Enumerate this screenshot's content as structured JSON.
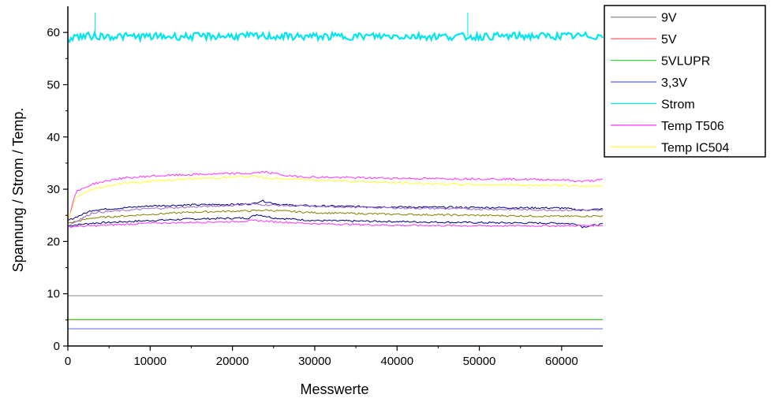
{
  "chart_data": {
    "type": "line",
    "title": "",
    "xlabel": "Messwerte",
    "ylabel": "Spannung / Strom / Temp.",
    "xlim": [
      0,
      65000
    ],
    "ylim": [
      0,
      65
    ],
    "xticks": [
      0,
      10000,
      20000,
      30000,
      40000,
      50000,
      60000
    ],
    "yticks": [
      0,
      10,
      20,
      30,
      40,
      50,
      60
    ],
    "grid": false,
    "legend_position": "top-right",
    "series": [
      {
        "name": "9V",
        "color": "#888888",
        "x": [
          0,
          65000
        ],
        "y": [
          9.6,
          9.6
        ]
      },
      {
        "name": "5V",
        "color": "#ff6060",
        "x": [
          0,
          65000
        ],
        "y": [
          5.0,
          5.0
        ]
      },
      {
        "name": "5VLUPR",
        "color": "#33dd33",
        "x": [
          0,
          65000
        ],
        "y": [
          5.1,
          5.1
        ]
      },
      {
        "name": "3,3V",
        "color": "#6060ff",
        "x": [
          0,
          65000
        ],
        "y": [
          3.3,
          3.3
        ]
      },
      {
        "name": "Strom",
        "color": "#00e5ee",
        "x": [
          0,
          500,
          3000,
          10000,
          20000,
          30000,
          40000,
          48500,
          55000,
          65000
        ],
        "y": [
          58.5,
          59.2,
          59.3,
          59.2,
          59.3,
          59.2,
          59.3,
          59.2,
          59.3,
          59.3
        ]
      },
      {
        "name": "Temp T506",
        "color": "#ff33ff",
        "x": [
          0,
          1000,
          3000,
          6000,
          10000,
          15000,
          20000,
          22000,
          24000,
          27000,
          30000,
          35000,
          40000,
          45000,
          50000,
          55000,
          60000,
          62500,
          65000
        ],
        "y": [
          24.0,
          29.5,
          31.0,
          32.0,
          32.5,
          32.8,
          33.0,
          33.0,
          33.3,
          32.5,
          32.3,
          32.2,
          32.1,
          32.0,
          32.0,
          31.9,
          31.8,
          31.5,
          31.8
        ]
      },
      {
        "name": "Temp IC504",
        "color": "#ffff33",
        "x": [
          0,
          1000,
          3000,
          6000,
          10000,
          15000,
          20000,
          23000,
          25000,
          30000,
          35000,
          40000,
          45000,
          50000,
          55000,
          60000,
          62500,
          65000
        ],
        "y": [
          24.0,
          28.5,
          30.0,
          31.0,
          31.5,
          32.0,
          32.3,
          32.5,
          32.0,
          31.8,
          31.5,
          31.2,
          31.0,
          30.9,
          30.8,
          30.8,
          30.5,
          30.7
        ]
      }
    ],
    "extra_traces": [
      {
        "color": "#000080",
        "x": [
          0,
          3000,
          10000,
          15000,
          22000,
          23000,
          25000,
          30000,
          40000,
          50000,
          60000,
          62000,
          62500,
          65000
        ],
        "y": [
          23.0,
          23.5,
          24.0,
          24.3,
          24.5,
          25.2,
          24.5,
          24.0,
          23.8,
          23.6,
          23.5,
          23.3,
          22.8,
          23.3
        ]
      },
      {
        "color": "#000080",
        "x": [
          0,
          3000,
          10000,
          15000,
          20000,
          22500,
          23500,
          26000,
          30000,
          40000,
          50000,
          60000,
          62500,
          65000
        ],
        "y": [
          24.0,
          26.0,
          26.8,
          27.0,
          27.1,
          27.2,
          27.8,
          27.0,
          26.8,
          26.6,
          26.5,
          26.4,
          26.0,
          26.2
        ]
      },
      {
        "color": "#808000",
        "x": [
          0,
          3000,
          10000,
          15000,
          20000,
          23000,
          24000,
          30000,
          40000,
          50000,
          60000,
          65000
        ],
        "y": [
          23.5,
          24.5,
          25.2,
          25.6,
          25.8,
          25.9,
          26.0,
          25.5,
          25.2,
          25.0,
          24.8,
          24.9
        ]
      },
      {
        "color": "#ff33ff",
        "x": [
          0,
          3000,
          10000,
          20000,
          23000,
          25000,
          30000,
          40000,
          50000,
          60000,
          65000
        ],
        "y": [
          22.8,
          23.0,
          23.5,
          23.8,
          24.0,
          23.8,
          23.4,
          23.1,
          23.0,
          23.0,
          23.1
        ]
      },
      {
        "color": "#9966cc",
        "x": [
          0,
          3000,
          10000,
          20000,
          22000,
          24000,
          30000,
          40000,
          50000,
          60000,
          65000
        ],
        "y": [
          23.0,
          25.5,
          26.3,
          26.9,
          27.2,
          27.0,
          26.7,
          26.4,
          26.2,
          26.0,
          25.9
        ]
      }
    ]
  }
}
